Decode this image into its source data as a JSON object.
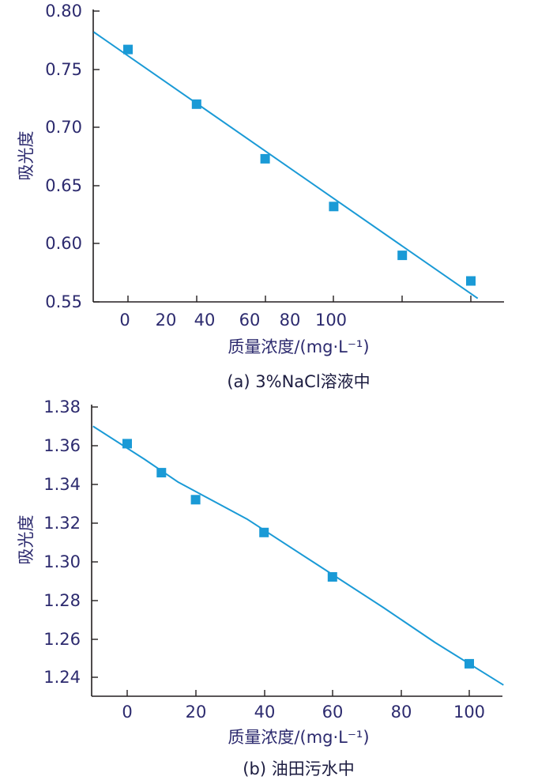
{
  "chart_data": [
    {
      "type": "scatter",
      "caption": "(a)   3%NaCl溶液中",
      "xlabel": "质量浓度/(mg·L⁻¹)",
      "ylabel": "吸光度",
      "ylim": [
        0.55,
        0.8
      ],
      "y_ticks": [
        "0.80",
        "0.75",
        "0.70",
        "0.65",
        "0.60",
        "0.55"
      ],
      "x_ticks": [
        "0",
        "20",
        "40",
        "60",
        "80",
        "100"
      ],
      "grid": false,
      "points": [
        {
          "x": 0,
          "y": 0.767
        },
        {
          "x": 40,
          "y": 0.72
        },
        {
          "x": 80,
          "y": 0.673
        },
        {
          "x": 120,
          "y": 0.632
        },
        {
          "x": 160,
          "y": 0.59
        },
        {
          "x": 200,
          "y": 0.568
        }
      ],
      "fit_line": [
        {
          "x": -20,
          "y": 0.782
        },
        {
          "x": 204,
          "y": 0.553
        }
      ],
      "marker_color": "#1a9ad6",
      "line_color": "#1a9ad6",
      "axis_color": "#231f20"
    },
    {
      "type": "scatter",
      "caption": "(b)   油田污水中",
      "xlabel": "质量浓度/(mg·L⁻¹)",
      "ylabel": "吸光度",
      "xlim": [
        -10,
        110
      ],
      "ylim": [
        1.23,
        1.38
      ],
      "y_ticks": [
        "1.38",
        "1.36",
        "1.34",
        "1.32",
        "1.30",
        "1.28",
        "1.26",
        "1.24"
      ],
      "x_ticks": [
        "0",
        "20",
        "40",
        "60",
        "80",
        "100"
      ],
      "grid": false,
      "points": [
        {
          "x": 0,
          "y": 1.361
        },
        {
          "x": 10,
          "y": 1.346
        },
        {
          "x": 20,
          "y": 1.332
        },
        {
          "x": 40,
          "y": 1.315
        },
        {
          "x": 60,
          "y": 1.292
        },
        {
          "x": 100,
          "y": 1.247
        }
      ],
      "fit_line": [
        {
          "x": -10,
          "y": 1.37
        },
        {
          "x": 5,
          "y": 1.353
        },
        {
          "x": 15,
          "y": 1.341
        },
        {
          "x": 35,
          "y": 1.322
        },
        {
          "x": 55,
          "y": 1.299
        },
        {
          "x": 75,
          "y": 1.276
        },
        {
          "x": 90,
          "y": 1.258
        },
        {
          "x": 110,
          "y": 1.236
        }
      ],
      "marker_color": "#1a9ad6",
      "line_color": "#1a9ad6",
      "axis_color": "#231f20"
    }
  ]
}
